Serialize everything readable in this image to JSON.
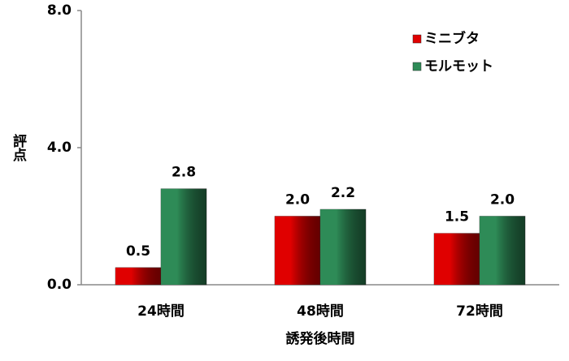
{
  "chart_data": {
    "type": "bar",
    "xlabel": "誘発後時間",
    "ylabel": "評点",
    "categories": [
      "24時間",
      "48時間",
      "72時間"
    ],
    "series": [
      {
        "name": "ミニブタ",
        "color": "#e00000",
        "values": [
          0.5,
          2.0,
          1.5
        ],
        "value_labels": [
          "0.5",
          "2.0",
          "1.5"
        ]
      },
      {
        "name": "モルモット",
        "color": "#2e8b57",
        "values": [
          2.8,
          2.2,
          2.0
        ],
        "value_labels": [
          "2.8",
          "2.2",
          "2.0"
        ]
      }
    ],
    "ylim": [
      0,
      8
    ],
    "yticks": [
      {
        "value": 0,
        "label": "0.0"
      },
      {
        "value": 4,
        "label": "4.0"
      },
      {
        "value": 8,
        "label": "8.0"
      }
    ],
    "legend": "upper-right"
  }
}
